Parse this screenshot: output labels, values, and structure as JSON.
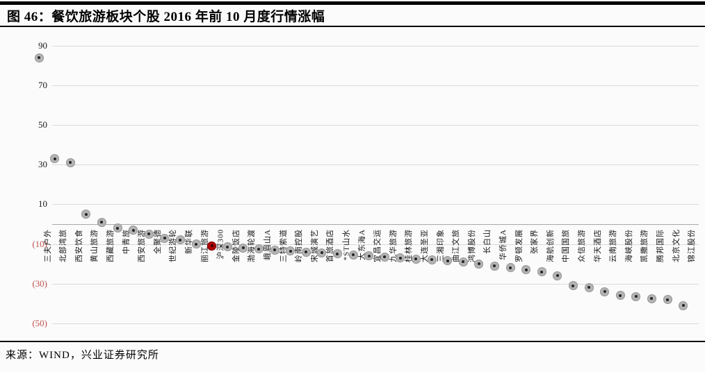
{
  "figure": {
    "number_label": "图 46：",
    "title": "图 46：餐饮旅游板块个股 2016 年前 10 月度行情涨幅",
    "source": "来源：WIND，兴业证券研究所"
  },
  "chart_data": {
    "type": "scatter",
    "title": "餐饮旅游板块个股2016年前10月度行情涨幅",
    "xlabel": "",
    "ylabel": "",
    "unit": "%",
    "ylim": [
      -55,
      95
    ],
    "yticks": [
      90,
      70,
      50,
      30,
      10,
      -10,
      -30,
      -50
    ],
    "negative_ticks_in_parentheses": true,
    "grid": "horizontal",
    "legend": "none",
    "categories": [
      "三夫户外",
      "北部湾旅",
      "西安饮食",
      "黄山旅游",
      "西藏旅游",
      "中青旅",
      "西安旅游",
      "全聚德",
      "世纪游轮",
      "新华联",
      "丽江旅游",
      "沪深300",
      "金陵饭店",
      "渤海轮渡",
      "峨眉山A",
      "三特索道",
      "岭南控股",
      "宋城演艺",
      "首旅酒店",
      "*ST山水",
      "大东海A",
      "宜昌交运",
      "九华旅游",
      "桂林旅游",
      "大连圣亚",
      "三湘印象",
      "曲江文旅",
      "鸿博股份",
      "长白山",
      "华侨城A",
      "罗顿发展",
      "张家界",
      "海航创新",
      "中国国旅",
      "众信旅游",
      "华天酒店",
      "云南旅游",
      "海峡股份",
      "凯撒旅游",
      "腾邦国际",
      "北京文化",
      "锦江股份"
    ],
    "values": [
      84,
      33,
      31,
      5,
      1,
      -2,
      -3,
      -5,
      -7,
      -8,
      -10,
      -11,
      -11.5,
      -12,
      -12.5,
      -13,
      -13.5,
      -14,
      -14.5,
      -15,
      -15.5,
      -16,
      -16.5,
      -17,
      -17.5,
      -18,
      -18.5,
      -19,
      -20,
      -21,
      -22,
      -23,
      -24,
      -26,
      -31,
      -32,
      -34,
      -36,
      -36.5,
      -37.5,
      -38,
      -41
    ],
    "highlight": {
      "label": "沪深300",
      "index": 11,
      "color": "#b00005"
    },
    "colors": {
      "marker": "#b3b3b3",
      "marker_center": "#242424",
      "negative_tick": "#c0504d",
      "gridline": "#dadada",
      "rule": "#000000"
    }
  }
}
